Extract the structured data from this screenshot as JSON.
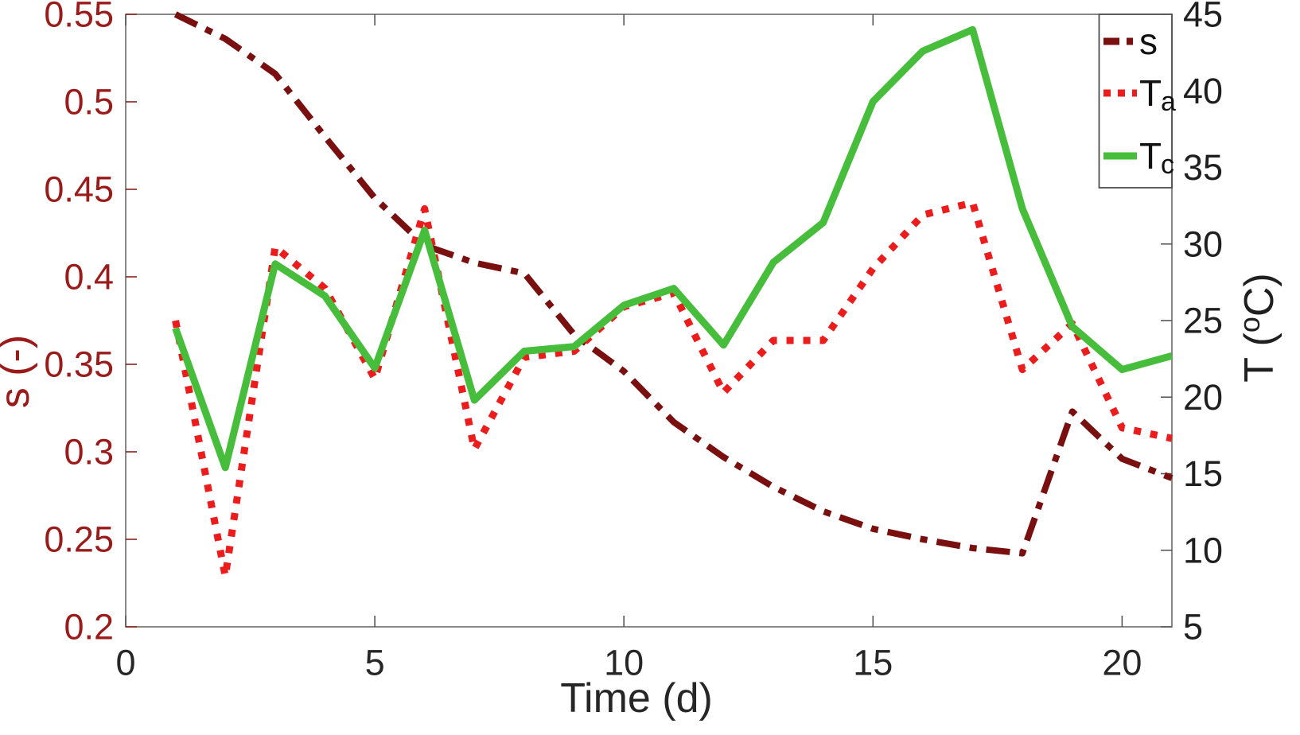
{
  "figure": {
    "background": "#ffffff",
    "box_color": "#6a6a6a",
    "x_axis": {
      "label": "Time (d)",
      "ticks": [
        0,
        5,
        10,
        15,
        20
      ],
      "tick_labels": [
        "0",
        "5",
        "10",
        "15",
        "20"
      ],
      "min": 0,
      "max": 21,
      "text_color": "#262626"
    },
    "y_left": {
      "label": "s (-)",
      "ticks": [
        0.2,
        0.25,
        0.3,
        0.35,
        0.4,
        0.45,
        0.5,
        0.55
      ],
      "tick_labels": [
        "0.2",
        "0.25",
        "0.3",
        "0.35",
        "0.4",
        "0.45",
        "0.5",
        "0.55"
      ],
      "min": 0.2,
      "max": 0.55,
      "text_color": "#9b1b1b",
      "tick_color": "#8a1f1f"
    },
    "y_right": {
      "label_prefix": "T  (",
      "label_sup": "o",
      "label_suffix": "C)",
      "ticks": [
        5,
        10,
        15,
        20,
        25,
        30,
        35,
        40,
        45
      ],
      "tick_labels": [
        "5",
        "10",
        "15",
        "20",
        "25",
        "30",
        "35",
        "40",
        "45"
      ],
      "min": 5,
      "max": 45,
      "text_color": "#1f1f1f",
      "tick_color": "#555555"
    },
    "legend": [
      {
        "label": "s",
        "sub": "",
        "color": "#7a0f0f",
        "style": "dashdot"
      },
      {
        "label": "T",
        "sub": "a",
        "color": "#ec1c1c",
        "style": "dotted"
      },
      {
        "label": "T",
        "sub": "c",
        "color": "#46be3c",
        "style": "solid"
      }
    ]
  },
  "chart_data": {
    "type": "line",
    "title": "",
    "xlabel": "Time (d)",
    "ylabel_left": "s (-)",
    "ylabel_right": "T (°C)",
    "x_range": [
      0,
      21
    ],
    "y_left_range": [
      0.2,
      0.55
    ],
    "y_right_range": [
      5,
      45
    ],
    "grid": false,
    "legend_position": "northeast",
    "x": [
      1,
      2,
      3,
      4,
      5,
      6,
      7,
      8,
      9,
      10,
      11,
      12,
      13,
      14,
      15,
      16,
      17,
      18,
      19,
      20,
      21
    ],
    "series": [
      {
        "name": "s",
        "axis": "left",
        "color": "#7a0f0f",
        "line_style": "dashdot",
        "line_width": 8,
        "values": [
          0.55,
          0.536,
          0.516,
          0.48,
          0.445,
          0.418,
          0.408,
          0.402,
          0.367,
          0.346,
          0.317,
          0.297,
          0.28,
          0.266,
          0.256,
          0.25,
          0.245,
          0.242,
          0.323,
          0.296,
          0.285
        ]
      },
      {
        "name": "T_a",
        "axis": "right",
        "color": "#ec1c1c",
        "line_style": "dotted",
        "line_width": 9,
        "values": [
          25.0,
          8.3,
          29.8,
          27.1,
          21.2,
          32.3,
          16.6,
          22.6,
          23.0,
          25.9,
          26.8,
          20.3,
          23.7,
          23.7,
          28.4,
          31.9,
          32.7,
          21.8,
          24.8,
          18.0,
          17.3
        ]
      },
      {
        "name": "T_c",
        "axis": "right",
        "color": "#46be3c",
        "line_style": "solid",
        "line_width": 9,
        "values": [
          24.5,
          15.4,
          28.7,
          26.6,
          21.9,
          30.9,
          19.8,
          23.0,
          23.3,
          26.0,
          27.1,
          23.4,
          28.8,
          31.4,
          39.3,
          42.6,
          44.0,
          32.3,
          24.6,
          21.8,
          22.7
        ]
      }
    ]
  }
}
